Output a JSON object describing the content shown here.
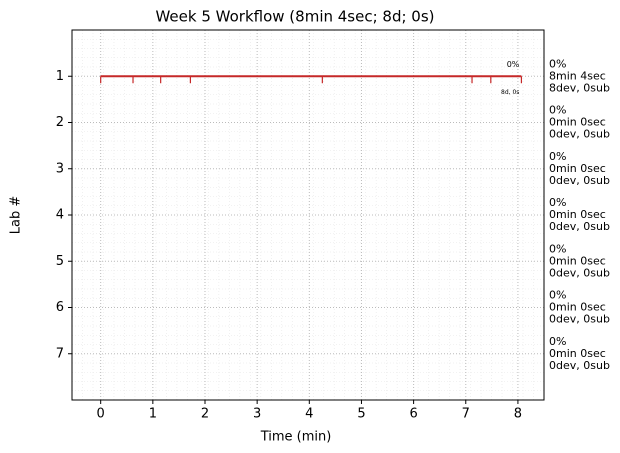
{
  "chart_data": {
    "type": "timeline",
    "title": "Week 5 Workflow (8min 4sec; 8d; 0s)",
    "xlabel": "Time (min)",
    "ylabel": "Lab #",
    "xlim": [
      -0.55,
      8.5
    ],
    "xticks": [
      0,
      1,
      2,
      3,
      4,
      5,
      6,
      7,
      8
    ],
    "ylim": [
      8,
      0
    ],
    "yticks": [
      1,
      2,
      3,
      4,
      5,
      6,
      7
    ],
    "grid": true,
    "series": [
      {
        "color": "#c62828",
        "y": 1,
        "start": 0,
        "end": 8.067,
        "events": [
          0,
          0.62,
          1.15,
          1.72,
          4.25,
          7.12,
          7.48,
          8.067
        ]
      }
    ],
    "annotations": [
      {
        "text": "0%"
      },
      {
        "text": "8d, 0s"
      }
    ],
    "lane_labels": [
      {
        "color": "#c62828",
        "lines": [
          "0%",
          "8min 4sec",
          "8dev, 0sub"
        ]
      },
      {
        "color": "#4a148c",
        "lines": [
          "0%",
          "0min 0sec",
          "0dev, 0sub"
        ]
      },
      {
        "color": "#1a237e",
        "lines": [
          "0%",
          "0min 0sec",
          "0dev, 0sub"
        ]
      },
      {
        "color": "#1e9be0",
        "lines": [
          "0%",
          "0min 0sec",
          "0dev, 0sub"
        ]
      },
      {
        "color": "#2e8b2e",
        "lines": [
          "0%",
          "0min 0sec",
          "0dev, 0sub"
        ]
      },
      {
        "color": "#e65100",
        "lines": [
          "0%",
          "0min 0sec",
          "0dev, 0sub"
        ]
      },
      {
        "color": "#000000",
        "lines": [
          "0%",
          "0min 0sec",
          "0dev, 0sub"
        ]
      }
    ]
  }
}
